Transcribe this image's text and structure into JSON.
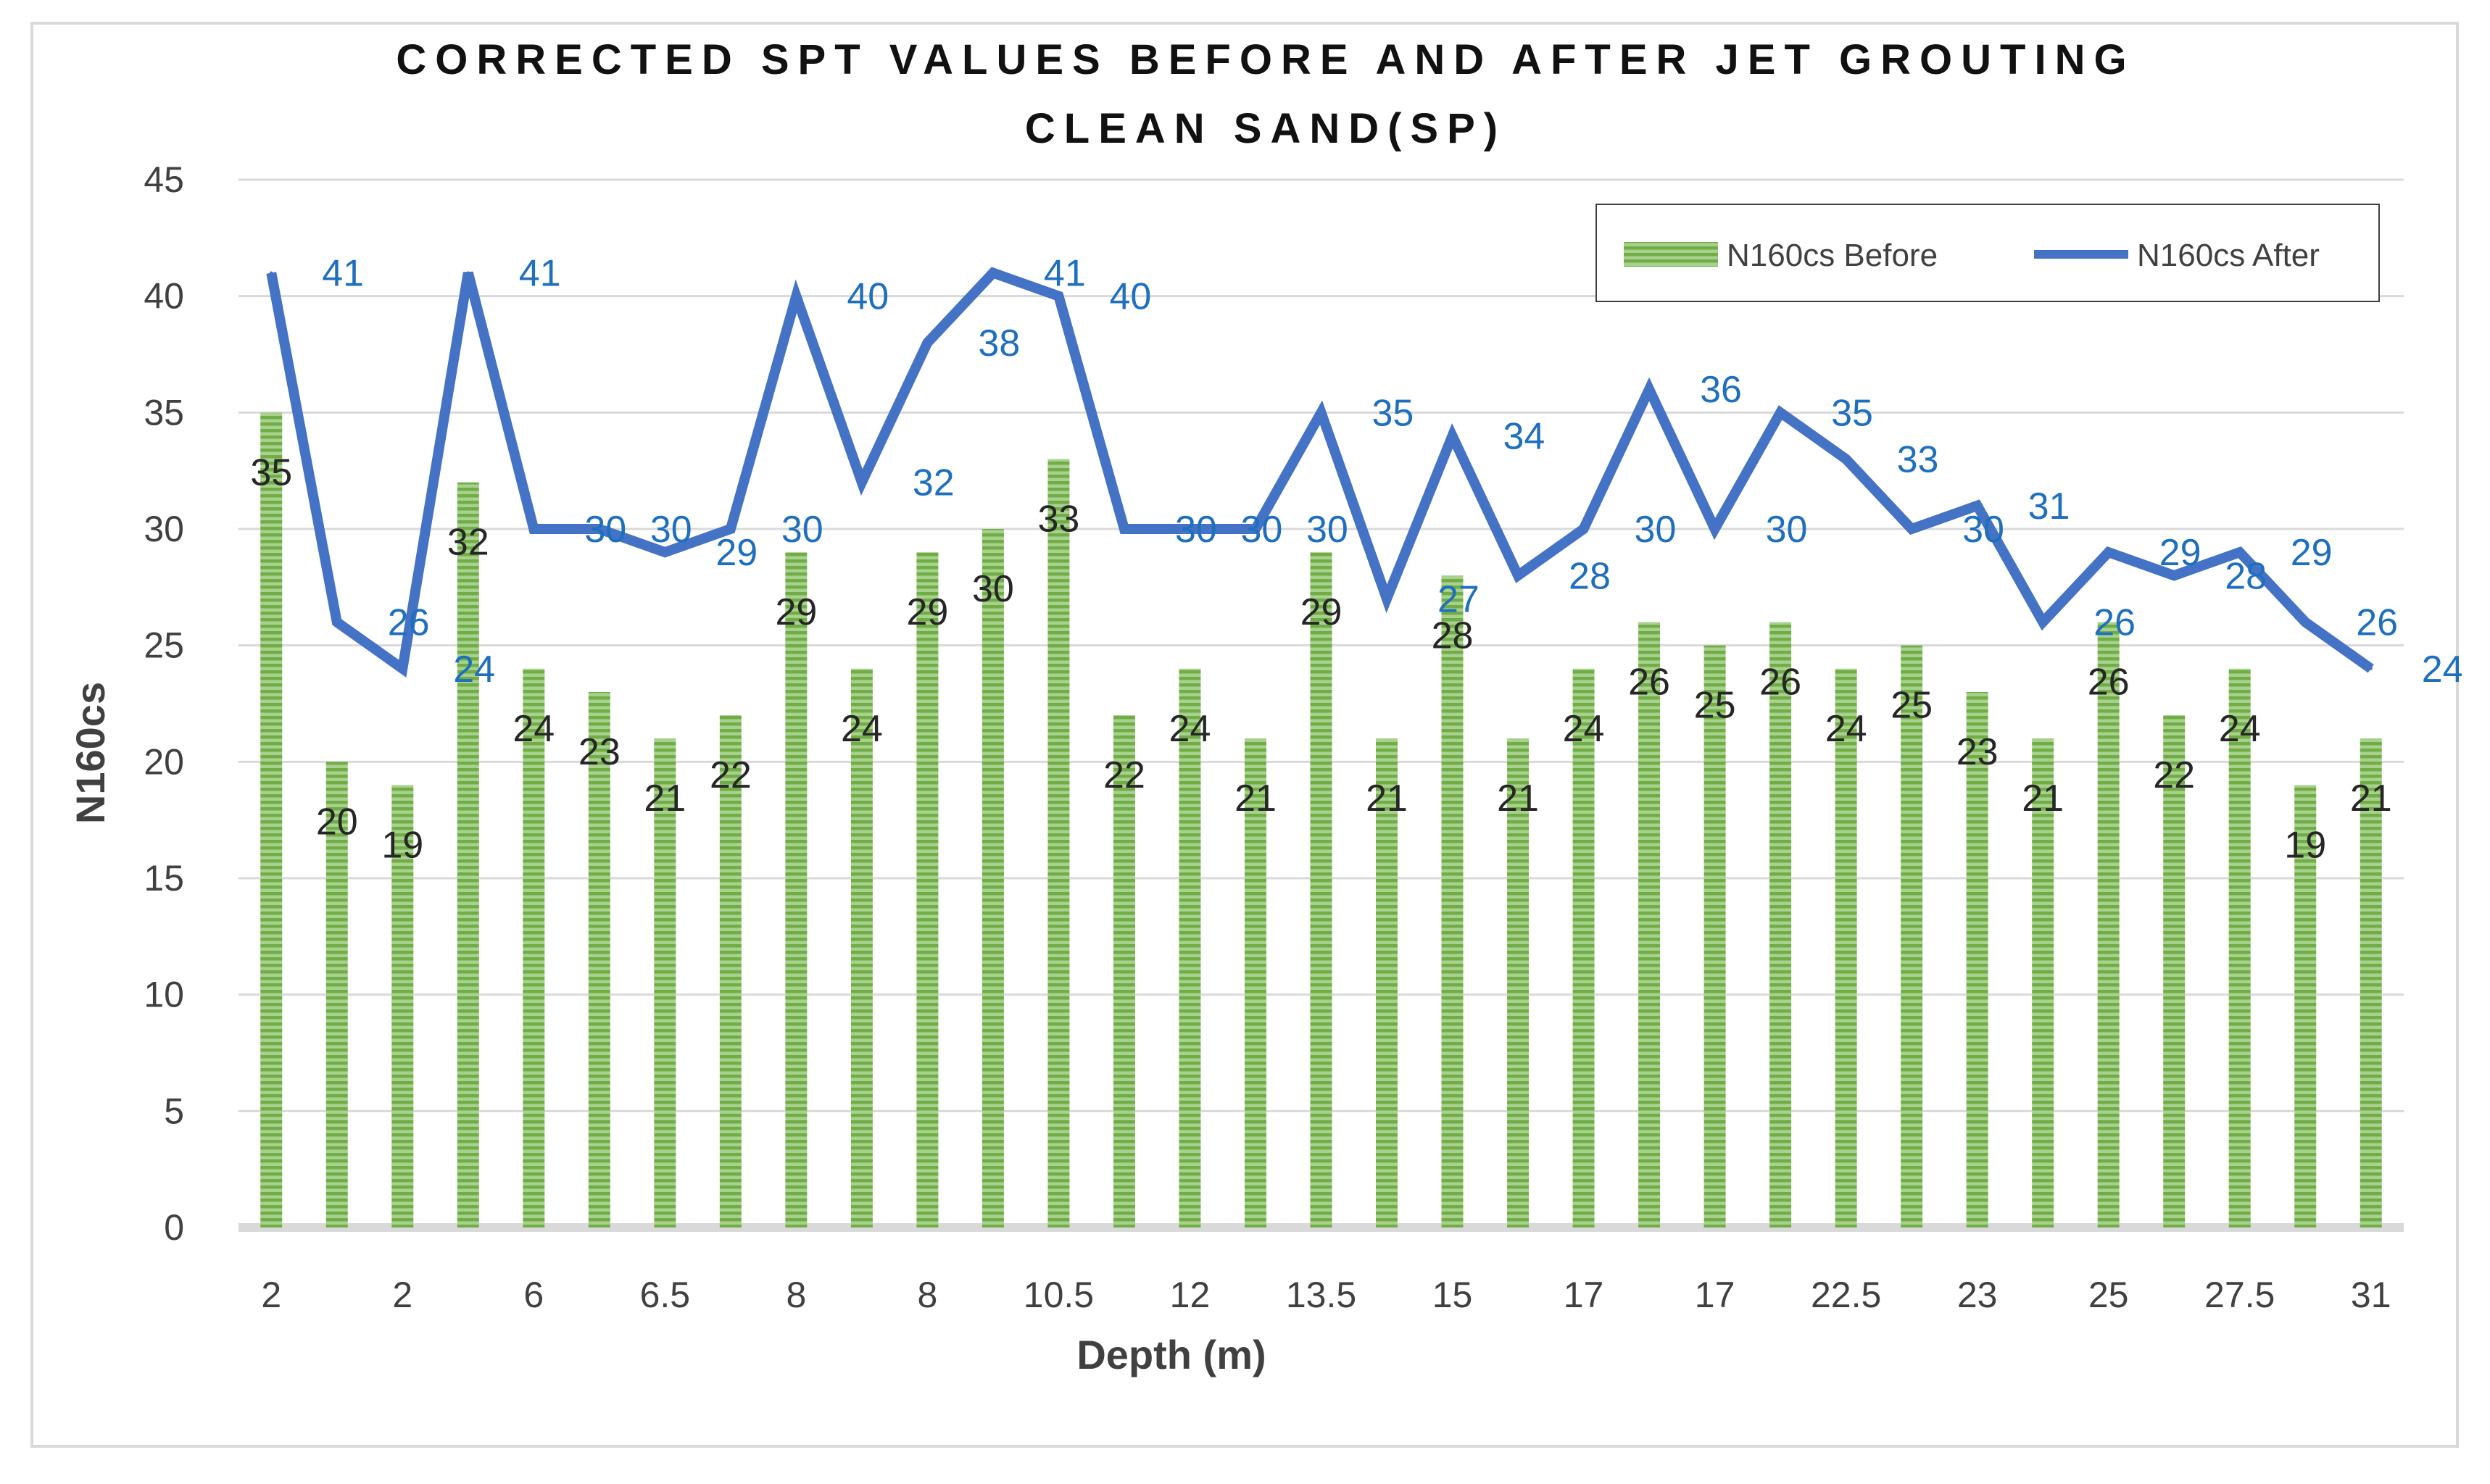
{
  "colors": {
    "bar": "#70ad47",
    "bar_stripe": "#a9d18e",
    "line": "#4472c4",
    "after_label": "#1f6fbf",
    "grid": "#d9d9d9"
  },
  "chart_data": {
    "type": "bar+line",
    "title": "CORRECTED SPT VALUES BEFORE AND AFTER JET GROUTING",
    "subtitle": "CLEAN SAND(SP)",
    "xlabel": "Depth (m)",
    "ylabel": "N160cs",
    "ylim": [
      0,
      45
    ],
    "yticks": [
      "0",
      "5",
      "10",
      "15",
      "20",
      "25",
      "30",
      "35",
      "40",
      "45"
    ],
    "x_tick_labels": [
      "2",
      "2",
      "6",
      "6.5",
      "8",
      "8",
      "10.5",
      "12",
      "13.5",
      "15",
      "17",
      "17",
      "22.5",
      "23",
      "25",
      "27.5",
      "31"
    ],
    "grid": true,
    "legend_position": "top-right",
    "series": [
      {
        "name": "N160cs Before",
        "kind": "bar",
        "values": [
          35,
          20,
          19,
          32,
          24,
          23,
          21,
          22,
          29,
          24,
          29,
          30,
          33,
          22,
          24,
          21,
          29,
          21,
          28,
          21,
          24,
          26,
          25,
          26,
          24,
          25,
          23,
          21,
          26,
          22,
          24,
          19,
          21
        ],
        "labels": [
          "35",
          "20",
          "19",
          "32",
          "24",
          "23",
          "21",
          "22",
          "29",
          "24",
          "29",
          "30",
          "33",
          "22",
          "24",
          "21",
          "29",
          "21",
          "28",
          "21",
          "24",
          "26",
          "25",
          "26",
          "24",
          "25",
          "23",
          "21",
          "26",
          "22",
          "24",
          "19",
          "21"
        ]
      },
      {
        "name": "N160cs After",
        "kind": "line",
        "values": [
          41,
          26,
          24,
          41,
          30,
          30,
          29,
          30,
          40,
          32,
          38,
          41,
          40,
          30,
          30,
          30,
          35,
          27,
          34,
          28,
          30,
          36,
          30,
          35,
          33,
          30,
          31,
          26,
          29,
          28,
          29,
          26,
          24
        ],
        "labels": [
          "41",
          "26",
          "24",
          "41",
          "30",
          "30",
          "29",
          "30",
          "40",
          "32",
          "38",
          "41",
          "40",
          "30",
          "30",
          "30",
          "35",
          "27",
          "34",
          "28",
          "30",
          "36",
          "30",
          "35",
          "33",
          "30",
          "31",
          "26",
          "29",
          "28",
          "29",
          "26",
          "24"
        ]
      }
    ]
  }
}
